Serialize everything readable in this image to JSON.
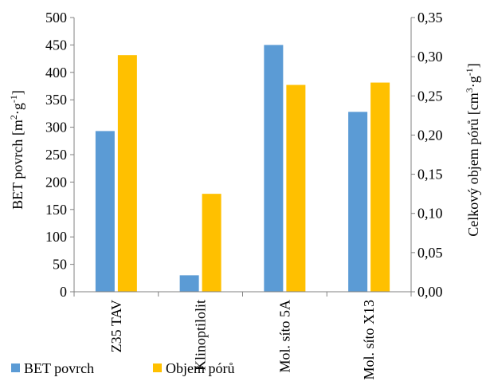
{
  "chart_data": {
    "type": "bar",
    "categories": [
      "Z35 TAV",
      "Klinoptilolit",
      "Mol. síto 5A",
      "Mol. síto X13"
    ],
    "series": [
      {
        "name": "BET povrch",
        "axis": "left",
        "color": "#5b9bd5",
        "values": [
          293,
          30,
          450,
          328
        ]
      },
      {
        "name": "Objem pórů",
        "axis": "right",
        "color": "#ffc000",
        "values": [
          0.302,
          0.125,
          0.264,
          0.267
        ]
      }
    ],
    "ylim": [
      0,
      500
    ],
    "ylim_right": [
      0,
      0.35
    ],
    "yticks": [
      "0",
      "50",
      "100",
      "150",
      "200",
      "250",
      "300",
      "350",
      "400",
      "450",
      "500"
    ],
    "yticks_right": [
      "0,00",
      "0,05",
      "0,10",
      "0,15",
      "0,20",
      "0,25",
      "0,30",
      "0,35"
    ],
    "ylabel": {
      "main": "BET povrch [m",
      "sup1": "2",
      "mid": "·g",
      "sup2": "-1",
      "end": "]"
    },
    "ylabel_right": {
      "main": "Celkový objem pórů [cm",
      "sup1": "3",
      "mid": "·g",
      "sup2": "-1",
      "end": "]"
    },
    "grid": false,
    "legend_position": "bottom-left"
  }
}
